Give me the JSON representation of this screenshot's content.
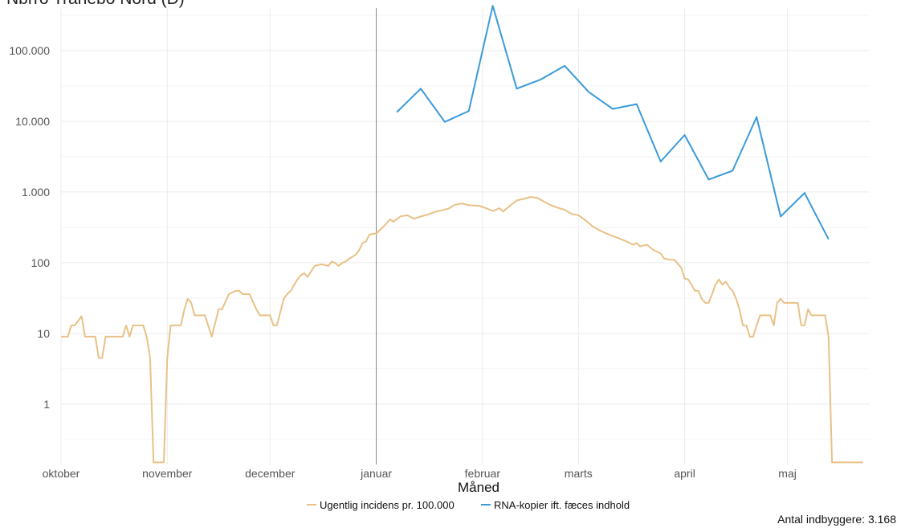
{
  "chart_title": "Nbrro Tranebo Nord (D)",
  "caption": "Antal indbyggere: 3.168",
  "colors": {
    "incidence": "#E8C187",
    "rna": "#3A9AD9",
    "vline": "#888888",
    "grid": "#EBEBEB"
  },
  "chart_data": {
    "type": "line",
    "title": "Nbrro Tranebo Nord (D)",
    "xlabel": "Måned",
    "ylabel": "",
    "yscale": "log",
    "ylim": [
      0.14,
      400000
    ],
    "yticks": [
      1,
      10,
      100,
      1000,
      10000,
      100000
    ],
    "ytick_labels": [
      "1",
      "10",
      "100",
      "1.000",
      "10.000",
      "100.000"
    ],
    "xticks": [
      "2020-10-01",
      "2020-11-01",
      "2020-12-01",
      "2021-01-01",
      "2021-02-01",
      "2021-03-01",
      "2021-04-01",
      "2021-05-01"
    ],
    "xtick_labels": [
      "oktober",
      "november",
      "december",
      "januar",
      "februar",
      "marts",
      "april",
      "maj"
    ],
    "xlim": [
      "2020-10-01",
      "2021-05-25"
    ],
    "reference_line_x": "2021-01-01",
    "legend_position": "bottom",
    "grid": true,
    "series": [
      {
        "name": "Ugentlig incidens pr. 100.000",
        "points": [
          [
            "2020-10-01",
            9
          ],
          [
            "2020-10-03",
            9
          ],
          [
            "2020-10-04",
            13
          ],
          [
            "2020-10-05",
            13
          ],
          [
            "2020-10-06",
            15
          ],
          [
            "2020-10-07",
            17.5
          ],
          [
            "2020-10-08",
            9
          ],
          [
            "2020-10-11",
            9
          ],
          [
            "2020-10-12",
            4.5
          ],
          [
            "2020-10-13",
            4.5
          ],
          [
            "2020-10-14",
            9
          ],
          [
            "2020-10-19",
            9
          ],
          [
            "2020-10-20",
            13
          ],
          [
            "2020-10-21",
            9
          ],
          [
            "2020-10-22",
            13
          ],
          [
            "2020-10-25",
            13
          ],
          [
            "2020-10-26",
            9
          ],
          [
            "2020-10-27",
            4.5
          ],
          [
            "2020-10-28",
            0.15
          ],
          [
            "2020-10-31",
            0.15
          ],
          [
            "2020-11-01",
            4.5
          ],
          [
            "2020-11-02",
            13
          ],
          [
            "2020-11-05",
            13
          ],
          [
            "2020-11-06",
            22
          ],
          [
            "2020-11-07",
            31
          ],
          [
            "2020-11-08",
            27
          ],
          [
            "2020-11-09",
            18
          ],
          [
            "2020-11-12",
            18
          ],
          [
            "2020-11-14",
            9
          ],
          [
            "2020-11-16",
            22
          ],
          [
            "2020-11-17",
            22
          ],
          [
            "2020-11-19",
            36
          ],
          [
            "2020-11-21",
            40
          ],
          [
            "2020-11-22",
            40
          ],
          [
            "2020-11-23",
            36
          ],
          [
            "2020-11-25",
            36
          ],
          [
            "2020-11-27",
            22
          ],
          [
            "2020-11-28",
            18
          ],
          [
            "2020-12-01",
            18
          ],
          [
            "2020-12-02",
            13
          ],
          [
            "2020-12-03",
            13
          ],
          [
            "2020-12-05",
            31
          ],
          [
            "2020-12-06",
            36
          ],
          [
            "2020-12-07",
            40
          ],
          [
            "2020-12-09",
            58
          ],
          [
            "2020-12-10",
            67
          ],
          [
            "2020-12-11",
            71
          ],
          [
            "2020-12-12",
            63
          ],
          [
            "2020-12-13",
            76
          ],
          [
            "2020-12-14",
            90
          ],
          [
            "2020-12-16",
            95
          ],
          [
            "2020-12-18",
            90
          ],
          [
            "2020-12-19",
            104
          ],
          [
            "2020-12-20",
            99
          ],
          [
            "2020-12-21",
            90
          ],
          [
            "2020-12-22",
            99
          ],
          [
            "2020-12-23",
            104
          ],
          [
            "2020-12-24",
            113
          ],
          [
            "2020-12-26",
            130
          ],
          [
            "2020-12-27",
            150
          ],
          [
            "2020-12-28",
            190
          ],
          [
            "2020-12-29",
            200
          ],
          [
            "2020-12-30",
            250
          ],
          [
            "2021-01-01",
            260
          ],
          [
            "2021-01-03",
            320
          ],
          [
            "2021-01-05",
            410
          ],
          [
            "2021-01-06",
            380
          ],
          [
            "2021-01-08",
            450
          ],
          [
            "2021-01-10",
            470
          ],
          [
            "2021-01-12",
            420
          ],
          [
            "2021-01-14",
            450
          ],
          [
            "2021-01-16",
            480
          ],
          [
            "2021-01-18",
            520
          ],
          [
            "2021-01-20",
            550
          ],
          [
            "2021-01-22",
            580
          ],
          [
            "2021-01-24",
            660
          ],
          [
            "2021-01-26",
            690
          ],
          [
            "2021-01-28",
            650
          ],
          [
            "2021-01-31",
            640
          ],
          [
            "2021-02-02",
            590
          ],
          [
            "2021-02-04",
            540
          ],
          [
            "2021-02-06",
            590
          ],
          [
            "2021-02-07",
            530
          ],
          [
            "2021-02-09",
            640
          ],
          [
            "2021-02-11",
            760
          ],
          [
            "2021-02-13",
            800
          ],
          [
            "2021-02-15",
            850
          ],
          [
            "2021-02-17",
            830
          ],
          [
            "2021-02-19",
            730
          ],
          [
            "2021-02-21",
            650
          ],
          [
            "2021-02-23",
            600
          ],
          [
            "2021-02-25",
            560
          ],
          [
            "2021-02-27",
            490
          ],
          [
            "2021-03-01",
            470
          ],
          [
            "2021-03-03",
            400
          ],
          [
            "2021-03-05",
            330
          ],
          [
            "2021-03-07",
            290
          ],
          [
            "2021-03-09",
            260
          ],
          [
            "2021-03-11",
            240
          ],
          [
            "2021-03-13",
            220
          ],
          [
            "2021-03-15",
            200
          ],
          [
            "2021-03-17",
            180
          ],
          [
            "2021-03-18",
            190
          ],
          [
            "2021-03-19",
            170
          ],
          [
            "2021-03-21",
            180
          ],
          [
            "2021-03-23",
            150
          ],
          [
            "2021-03-25",
            135
          ],
          [
            "2021-03-26",
            115
          ],
          [
            "2021-03-28",
            110
          ],
          [
            "2021-03-29",
            110
          ],
          [
            "2021-03-31",
            85
          ],
          [
            "2021-04-01",
            60
          ],
          [
            "2021-04-02",
            58
          ],
          [
            "2021-04-03",
            49
          ],
          [
            "2021-04-04",
            40
          ],
          [
            "2021-04-05",
            40
          ],
          [
            "2021-04-06",
            31
          ],
          [
            "2021-04-07",
            27
          ],
          [
            "2021-04-08",
            27
          ],
          [
            "2021-04-09",
            36
          ],
          [
            "2021-04-10",
            49
          ],
          [
            "2021-04-11",
            58
          ],
          [
            "2021-04-12",
            49
          ],
          [
            "2021-04-13",
            54
          ],
          [
            "2021-04-14",
            45
          ],
          [
            "2021-04-15",
            40
          ],
          [
            "2021-04-16",
            31
          ],
          [
            "2021-04-17",
            22
          ],
          [
            "2021-04-18",
            13
          ],
          [
            "2021-04-19",
            13
          ],
          [
            "2021-04-20",
            9
          ],
          [
            "2021-04-21",
            9
          ],
          [
            "2021-04-22",
            13
          ],
          [
            "2021-04-23",
            18
          ],
          [
            "2021-04-25",
            18
          ],
          [
            "2021-04-26",
            18
          ],
          [
            "2021-04-27",
            13
          ],
          [
            "2021-04-28",
            27
          ],
          [
            "2021-04-29",
            31
          ],
          [
            "2021-04-30",
            27
          ],
          [
            "2021-05-04",
            27
          ],
          [
            "2021-05-05",
            13
          ],
          [
            "2021-05-06",
            13
          ],
          [
            "2021-05-07",
            22
          ],
          [
            "2021-05-08",
            18
          ],
          [
            "2021-05-12",
            18
          ],
          [
            "2021-05-13",
            9
          ],
          [
            "2021-05-14",
            0.15
          ],
          [
            "2021-05-23",
            0.15
          ]
        ]
      },
      {
        "name": "RNA-kopier ift. fæces indhold",
        "points": [
          [
            "2021-01-07",
            13500
          ],
          [
            "2021-01-14",
            29000
          ],
          [
            "2021-01-21",
            9800
          ],
          [
            "2021-01-28",
            14000
          ],
          [
            "2021-02-04",
            430000
          ],
          [
            "2021-02-11",
            29000
          ],
          [
            "2021-02-18",
            39000
          ],
          [
            "2021-02-25",
            61000
          ],
          [
            "2021-03-04",
            26000
          ],
          [
            "2021-03-11",
            15000
          ],
          [
            "2021-03-18",
            17500
          ],
          [
            "2021-03-25",
            2700
          ],
          [
            "2021-04-01",
            6400
          ],
          [
            "2021-04-08",
            1500
          ],
          [
            "2021-04-15",
            2000
          ],
          [
            "2021-04-22",
            11500
          ],
          [
            "2021-04-29",
            450
          ],
          [
            "2021-05-06",
            970
          ],
          [
            "2021-05-13",
            215
          ]
        ]
      }
    ]
  }
}
